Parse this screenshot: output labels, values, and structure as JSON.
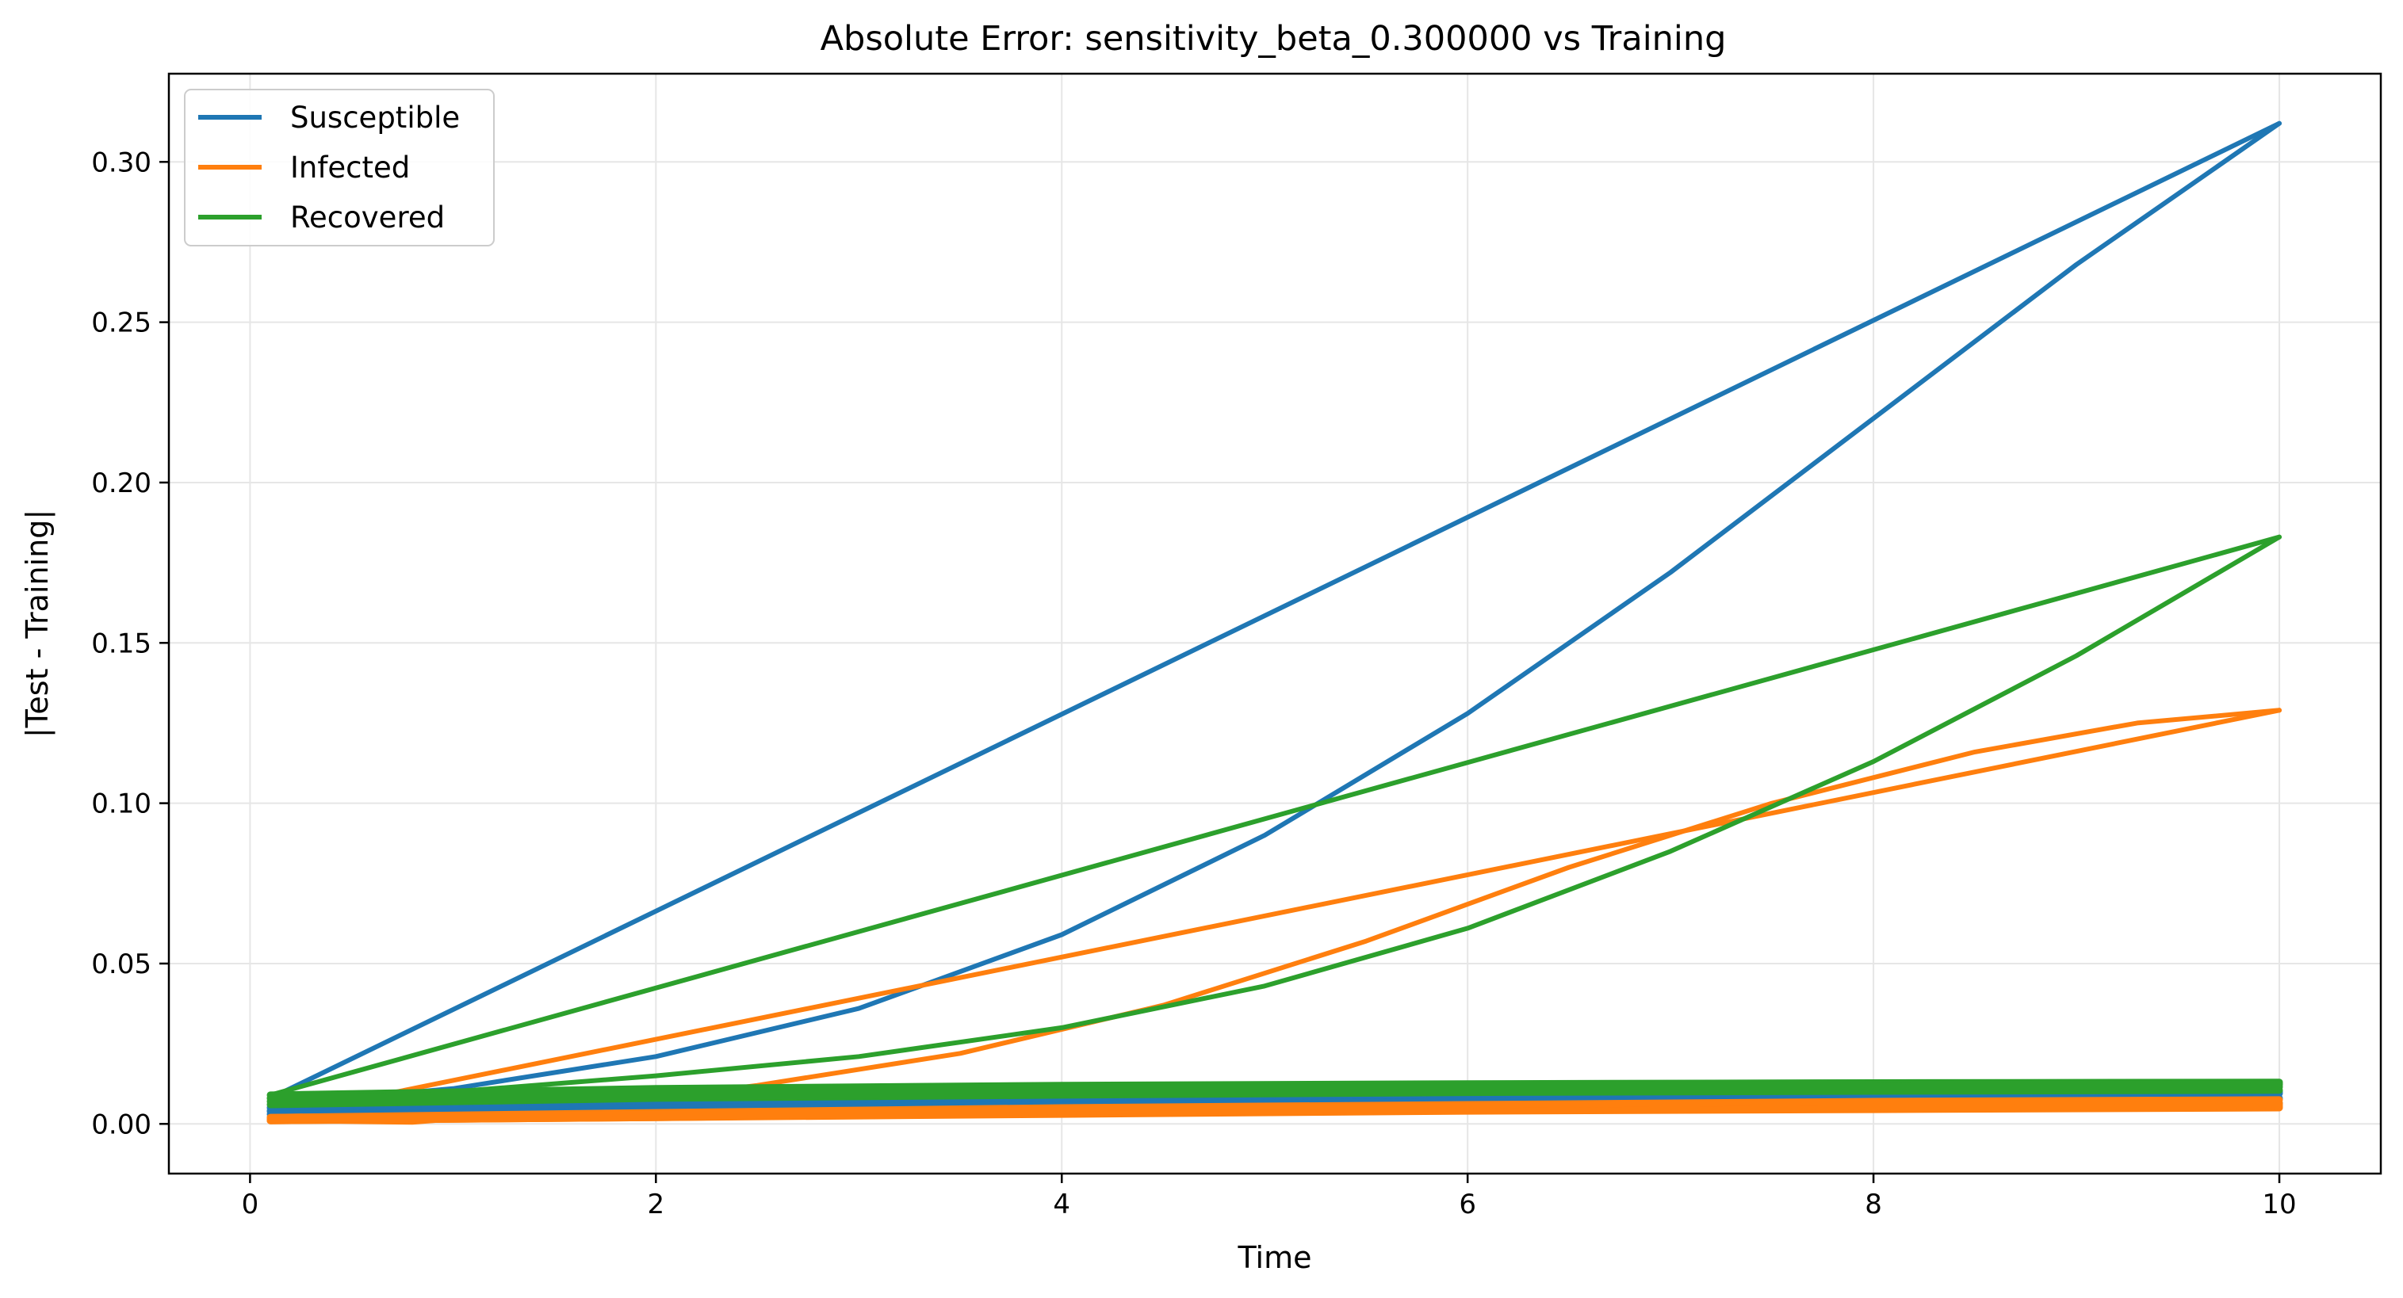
{
  "chart_data": {
    "type": "line",
    "title": "Absolute Error: sensitivity_beta_0.300000 vs Training",
    "xlabel": "Time",
    "ylabel": "|Test - Training|",
    "xlim": [
      -0.4,
      10.5
    ],
    "ylim": [
      -0.0155,
      0.3275
    ],
    "xticks": [
      0,
      2,
      4,
      6,
      8,
      10
    ],
    "xtick_labels": [
      "0",
      "2",
      "4",
      "6",
      "8",
      "10"
    ],
    "yticks": [
      0.0,
      0.05,
      0.1,
      0.15,
      0.2,
      0.25,
      0.3
    ],
    "ytick_labels": [
      "0.00",
      "0.05",
      "0.10",
      "0.15",
      "0.20",
      "0.25",
      "0.30"
    ],
    "grid": true,
    "legend_position": "upper-left",
    "legend": [
      "Susceptible",
      "Infected",
      "Recovered"
    ],
    "colors": {
      "Susceptible": "#1f77b4",
      "Infected": "#ff7f0e",
      "Recovered": "#2ca02c"
    },
    "series": [
      {
        "name": "Susceptible",
        "color": "#1f77b4",
        "lines": [
          {
            "x": [
              0.1,
              10.0
            ],
            "y": [
              0.008,
              0.312
            ]
          },
          {
            "x": [
              0.1,
              1.0,
              2.0,
              3.0,
              4.0,
              5.0,
              6.0,
              7.0,
              8.0,
              9.0,
              10.0
            ],
            "y": [
              0.006,
              0.011,
              0.021,
              0.036,
              0.059,
              0.09,
              0.128,
              0.172,
              0.22,
              0.268,
              0.312
            ]
          },
          {
            "x": [
              0.1,
              2.0,
              4.0,
              6.0,
              8.0,
              10.0
            ],
            "y": [
              0.005,
              0.007,
              0.008,
              0.009,
              0.0095,
              0.01
            ]
          },
          {
            "x": [
              0.1,
              2.0,
              4.0,
              6.0,
              8.0,
              10.0
            ],
            "y": [
              0.004,
              0.006,
              0.0075,
              0.0085,
              0.009,
              0.0095
            ]
          },
          {
            "x": [
              0.1,
              2.0,
              4.0,
              6.0,
              8.0,
              10.0
            ],
            "y": [
              0.004,
              0.005,
              0.006,
              0.007,
              0.0075,
              0.008
            ]
          },
          {
            "x": [
              0.1,
              2.0,
              4.0,
              6.0,
              8.0,
              10.0
            ],
            "y": [
              0.003,
              0.004,
              0.005,
              0.0055,
              0.006,
              0.0065
            ]
          }
        ]
      },
      {
        "name": "Infected",
        "color": "#ff7f0e",
        "lines": [
          {
            "x": [
              0.1,
              10.0
            ],
            "y": [
              0.002,
              0.129
            ]
          },
          {
            "x": [
              0.1,
              0.8,
              1.5,
              2.5,
              3.5,
              4.5,
              5.5,
              6.5,
              7.5,
              8.5,
              9.3,
              10.0
            ],
            "y": [
              0.001,
              0.0005,
              0.004,
              0.012,
              0.022,
              0.037,
              0.057,
              0.08,
              0.1,
              0.116,
              0.125,
              0.129
            ]
          },
          {
            "x": [
              0.1,
              2.0,
              4.0,
              6.0,
              8.0,
              10.0
            ],
            "y": [
              0.001,
              0.002,
              0.003,
              0.004,
              0.0045,
              0.005
            ]
          },
          {
            "x": [
              0.1,
              2.0,
              4.0,
              6.0,
              8.0,
              10.0
            ],
            "y": [
              0.002,
              0.003,
              0.0045,
              0.0055,
              0.006,
              0.0065
            ]
          },
          {
            "x": [
              0.1,
              2.0,
              4.0,
              6.0,
              8.0,
              10.0
            ],
            "y": [
              0.001,
              0.002,
              0.0035,
              0.0045,
              0.005,
              0.0055
            ]
          },
          {
            "x": [
              0.1,
              2.0,
              4.0,
              6.0,
              8.0,
              10.0
            ],
            "y": [
              0.0015,
              0.0025,
              0.004,
              0.005,
              0.0055,
              0.006
            ]
          },
          {
            "x": [
              0.1,
              2.0,
              4.0,
              6.0,
              8.0,
              10.0
            ],
            "y": [
              0.002,
              0.0035,
              0.005,
              0.006,
              0.007,
              0.0075
            ]
          }
        ]
      },
      {
        "name": "Recovered",
        "color": "#2ca02c",
        "lines": [
          {
            "x": [
              0.1,
              10.0
            ],
            "y": [
              0.009,
              0.183
            ]
          },
          {
            "x": [
              0.1,
              1.0,
              2.0,
              3.0,
              4.0,
              5.0,
              6.0,
              7.0,
              8.0,
              9.0,
              10.0
            ],
            "y": [
              0.007,
              0.01,
              0.015,
              0.021,
              0.03,
              0.043,
              0.061,
              0.085,
              0.113,
              0.146,
              0.183
            ]
          },
          {
            "x": [
              0.1,
              2.0,
              4.0,
              6.0,
              8.0,
              10.0
            ],
            "y": [
              0.009,
              0.011,
              0.012,
              0.0125,
              0.0128,
              0.013
            ]
          },
          {
            "x": [
              0.1,
              2.0,
              4.0,
              6.0,
              8.0,
              10.0
            ],
            "y": [
              0.008,
              0.01,
              0.011,
              0.0115,
              0.012,
              0.0125
            ]
          },
          {
            "x": [
              0.1,
              2.0,
              4.0,
              6.0,
              8.0,
              10.0
            ],
            "y": [
              0.007,
              0.009,
              0.01,
              0.0108,
              0.0112,
              0.0115
            ]
          },
          {
            "x": [
              0.1,
              2.0,
              4.0,
              6.0,
              8.0,
              10.0
            ],
            "y": [
              0.006,
              0.008,
              0.009,
              0.0098,
              0.0102,
              0.0105
            ]
          },
          {
            "x": [
              0.1,
              2.0,
              4.0,
              6.0,
              8.0,
              10.0
            ],
            "y": [
              0.008,
              0.0095,
              0.0105,
              0.0112,
              0.0118,
              0.0122
            ]
          }
        ]
      }
    ]
  }
}
